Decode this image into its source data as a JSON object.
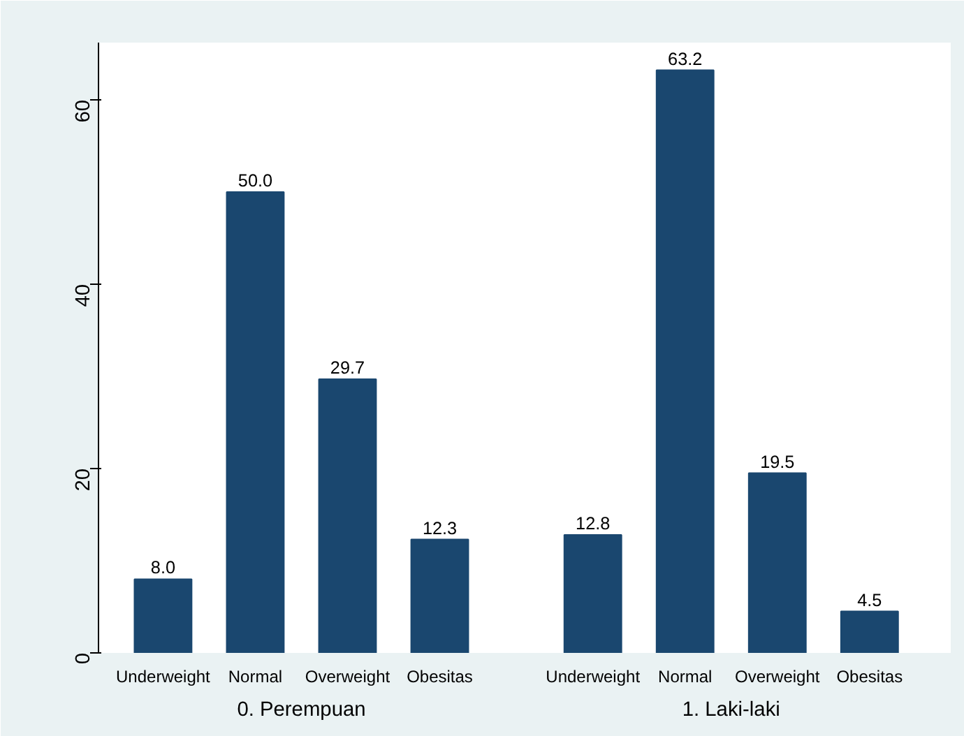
{
  "chart_data": {
    "type": "bar",
    "categories": [
      "Underweight",
      "Normal",
      "Overweight",
      "Obesitas",
      "Underweight",
      "Normal",
      "Overweight",
      "Obesitas"
    ],
    "values": [
      8.0,
      50.0,
      29.7,
      12.3,
      12.8,
      63.2,
      19.5,
      4.5
    ],
    "value_labels": [
      "8.0",
      "50.0",
      "29.7",
      "12.3",
      "12.8",
      "63.2",
      "19.5",
      "4.5"
    ],
    "color": "#1a476f",
    "ylim": [
      0,
      66.2
    ],
    "yticks": [
      0,
      20,
      40,
      60
    ],
    "annotations": [
      "0. Perempuan",
      "1. Laki-laki"
    ],
    "grid": false
  }
}
